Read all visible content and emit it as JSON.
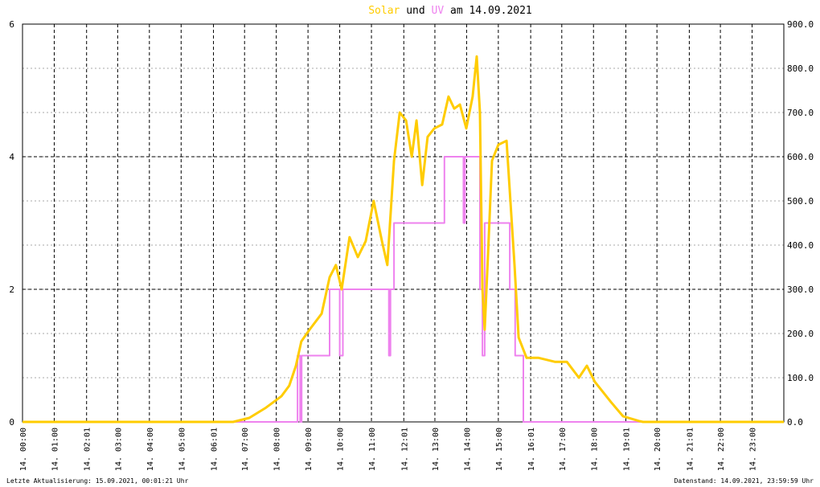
{
  "chart_data": {
    "type": "line",
    "title": [
      "Solar",
      "und",
      "UV",
      "am 14.09.2021"
    ],
    "xlim": [
      0,
      24
    ],
    "xticks": [
      {
        "value": 0,
        "label": "14. 00:00"
      },
      {
        "value": 1,
        "label": "14. 01:00"
      },
      {
        "value": 2.02,
        "label": "14. 02:01"
      },
      {
        "value": 3,
        "label": "14. 03:00"
      },
      {
        "value": 4,
        "label": "14. 04:00"
      },
      {
        "value": 5,
        "label": "14. 05:00"
      },
      {
        "value": 6.02,
        "label": "14. 06:01"
      },
      {
        "value": 7,
        "label": "14. 07:00"
      },
      {
        "value": 8,
        "label": "14. 08:00"
      },
      {
        "value": 9,
        "label": "14. 09:00"
      },
      {
        "value": 10,
        "label": "14. 10:00"
      },
      {
        "value": 11,
        "label": "14. 11:00"
      },
      {
        "value": 12.02,
        "label": "14. 12:01"
      },
      {
        "value": 13,
        "label": "14. 13:00"
      },
      {
        "value": 14,
        "label": "14. 14:00"
      },
      {
        "value": 15,
        "label": "14. 15:00"
      },
      {
        "value": 16.02,
        "label": "14. 16:01"
      },
      {
        "value": 17,
        "label": "14. 17:00"
      },
      {
        "value": 18,
        "label": "14. 18:00"
      },
      {
        "value": 19.02,
        "label": "14. 19:01"
      },
      {
        "value": 20,
        "label": "14. 20:00"
      },
      {
        "value": 21.02,
        "label": "14. 21:01"
      },
      {
        "value": 22,
        "label": "14. 22:00"
      },
      {
        "value": 23,
        "label": "14. 23:00"
      }
    ],
    "ylim": [
      0,
      6
    ],
    "yticks": [
      0,
      2,
      4,
      6
    ],
    "y2lim": [
      0,
      900
    ],
    "y2ticks": [
      {
        "value": 0,
        "label": "0.0"
      },
      {
        "value": 100,
        "label": "100.0"
      },
      {
        "value": 200,
        "label": "200.0"
      },
      {
        "value": 300,
        "label": "300.0"
      },
      {
        "value": 400,
        "label": "400.0"
      },
      {
        "value": 500,
        "label": "500.0"
      },
      {
        "value": 600,
        "label": "600.0"
      },
      {
        "value": 700,
        "label": "700.0"
      },
      {
        "value": 800,
        "label": "800.0"
      },
      {
        "value": 900,
        "label": "900.0"
      }
    ],
    "grid": true,
    "series": [
      {
        "name": "Solar",
        "color": "#ffcc00",
        "axis": "y2",
        "x": [
          0,
          6.64,
          7.15,
          7.65,
          8.16,
          8.41,
          8.62,
          8.79,
          9.05,
          9.43,
          9.68,
          9.88,
          10.06,
          10.31,
          10.57,
          10.82,
          11.07,
          11.33,
          11.5,
          11.71,
          11.89,
          12.09,
          12.27,
          12.42,
          12.6,
          12.77,
          12.98,
          13.23,
          13.43,
          13.61,
          13.79,
          13.99,
          14.19,
          14.32,
          14.42,
          14.5,
          14.57,
          14.67,
          14.8,
          15.0,
          15.26,
          15.38,
          15.51,
          15.64,
          15.89,
          16.27,
          16.78,
          17.16,
          17.54,
          17.79,
          18.04,
          18.55,
          18.93,
          19.44,
          19.56,
          24
        ],
        "values": [
          0,
          0,
          9,
          31,
          58,
          82,
          127,
          182,
          209,
          245,
          327,
          355,
          300,
          418,
          373,
          409,
          500,
          409,
          355,
          591,
          700,
          682,
          600,
          682,
          536,
          645,
          664,
          673,
          736,
          709,
          718,
          664,
          736,
          827,
          700,
          300,
          209,
          373,
          591,
          627,
          636,
          500,
          355,
          191,
          145,
          145,
          136,
          136,
          100,
          127,
          91,
          45,
          13,
          2,
          0,
          0
        ]
      },
      {
        "name": "UV",
        "color": "#ee82ee",
        "axis": "y",
        "x": [
          0,
          8.67,
          8.67,
          8.75,
          8.75,
          8.8,
          8.8,
          9.68,
          9.68,
          10.0,
          10.0,
          10.1,
          10.1,
          11.55,
          11.55,
          11.6,
          11.6,
          11.71,
          11.71,
          13.3,
          13.3,
          13.9,
          13.9,
          13.95,
          13.95,
          14.42,
          14.42,
          14.5,
          14.5,
          14.57,
          14.57,
          15.36,
          15.36,
          15.53,
          15.53,
          15.79,
          15.79,
          24
        ],
        "values": [
          0,
          0,
          1,
          1,
          0,
          0,
          1,
          1,
          2,
          2,
          1,
          1,
          2,
          2,
          1,
          1,
          2,
          2,
          3,
          3,
          4,
          4,
          3,
          3,
          4,
          4,
          2,
          2,
          1,
          1,
          3,
          3,
          2,
          2,
          1,
          1,
          0,
          0
        ]
      }
    ],
    "footer_left": "Letzte Aktualisierung: 15.09.2021, 00:01:21 Uhr",
    "footer_right": "Datenstand: 14.09.2021, 23:59:59 Uhr"
  }
}
